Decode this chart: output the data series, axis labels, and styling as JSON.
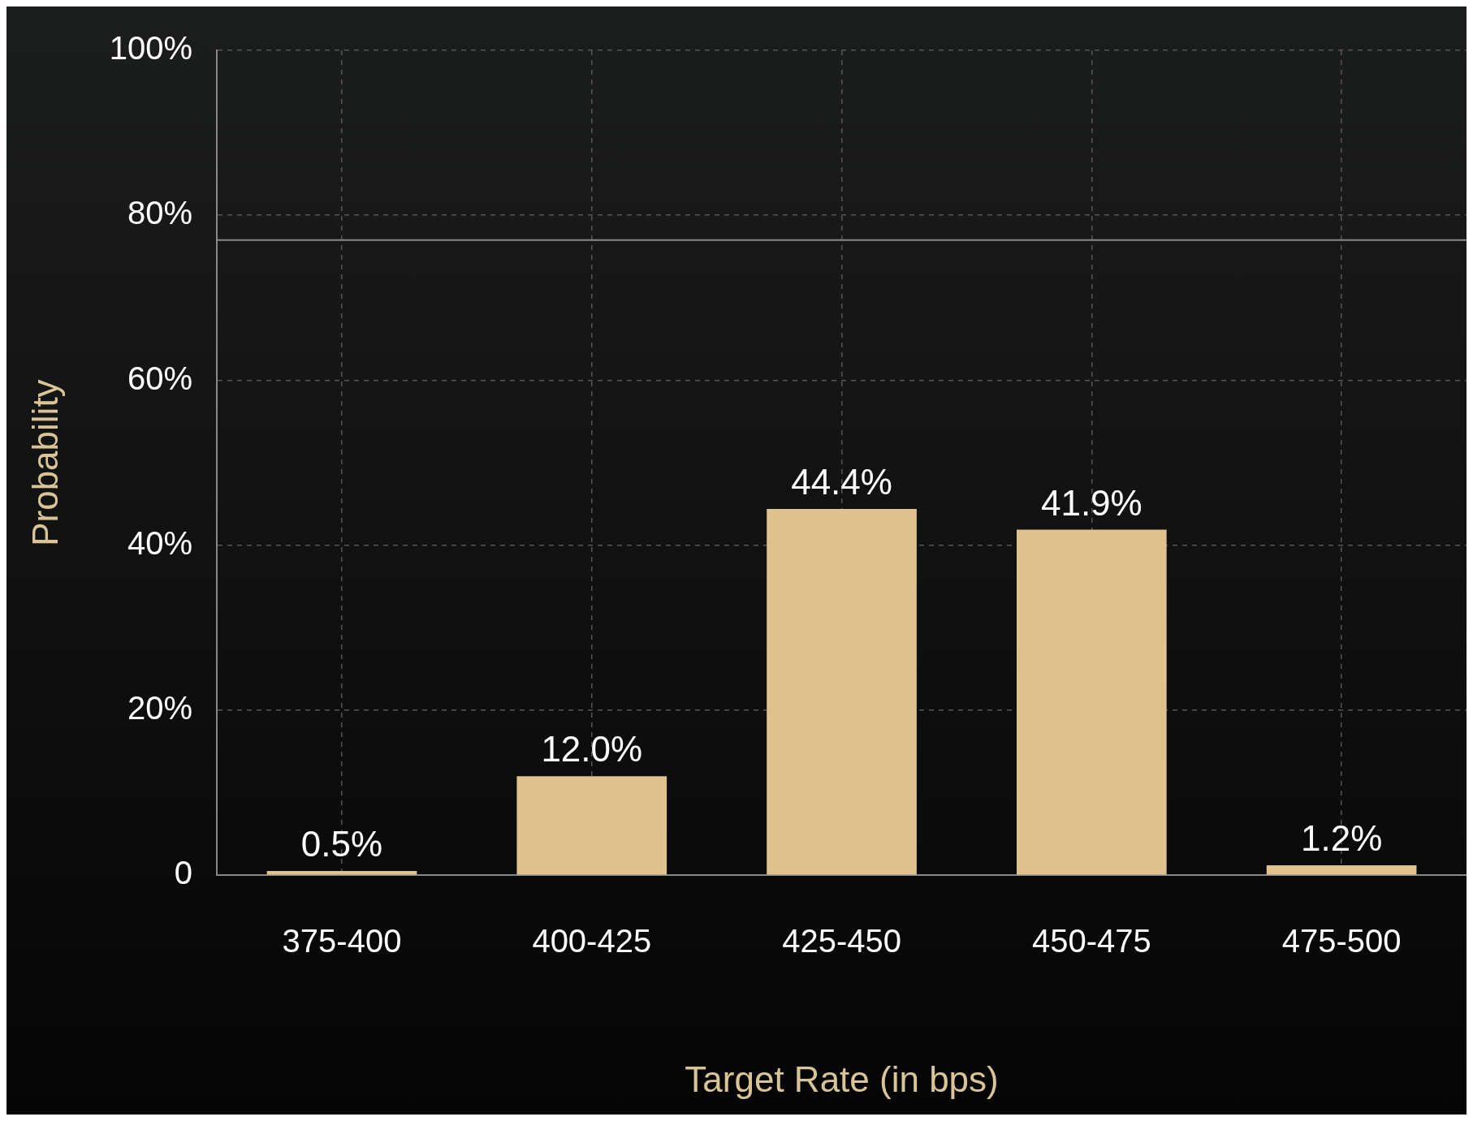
{
  "chart_data": {
    "type": "bar",
    "xlabel": "Target Rate (in bps)",
    "ylabel": "Probability",
    "categories": [
      "375-400",
      "400-425",
      "425-450",
      "450-475",
      "475-500"
    ],
    "values": [
      0.5,
      12.0,
      44.4,
      41.9,
      1.2
    ],
    "value_labels": [
      "0.5%",
      "12.0%",
      "44.4%",
      "41.9%",
      "1.2%"
    ],
    "color": "#dfc28e",
    "ylim": [
      0,
      100
    ],
    "yticks": [
      0,
      {
        "value": 20,
        "label": "20%"
      },
      {
        "value": 40,
        "label": "40%"
      },
      {
        "value": 60,
        "label": "60%"
      },
      {
        "value": 80,
        "label": "80%"
      },
      {
        "value": 100,
        "label": "100%"
      }
    ],
    "ref_lines": [
      {
        "axis": "y",
        "value": 77,
        "color": "#8a8a8a"
      }
    ],
    "grid": true,
    "legend": false
  }
}
